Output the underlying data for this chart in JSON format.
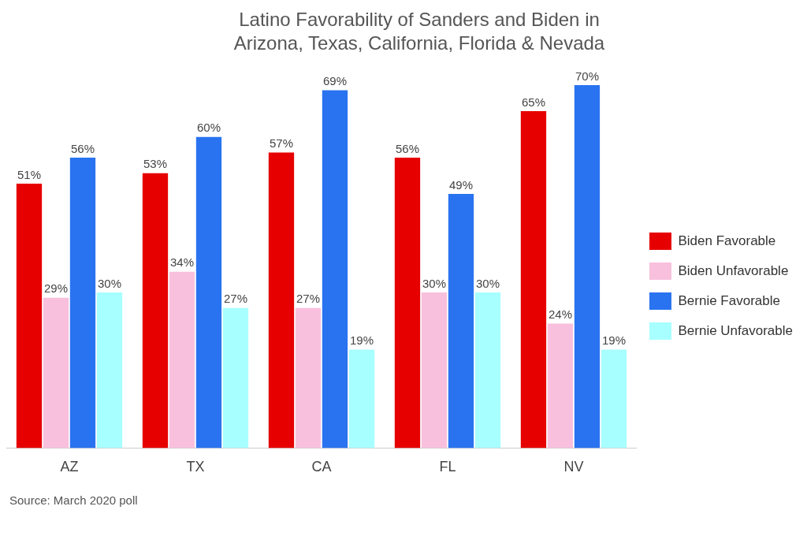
{
  "chart_data": {
    "type": "bar",
    "title": "Latino Favorability of Sanders and Biden in\nArizona, Texas, California, Florida & Nevada",
    "categories": [
      "AZ",
      "TX",
      "CA",
      "FL",
      "NV"
    ],
    "series": [
      {
        "name": "Biden Favorable",
        "color": "#e60000",
        "values": [
          51,
          53,
          57,
          56,
          65
        ],
        "value_labels": [
          "51%",
          "53%",
          "57%",
          "56%",
          "65%"
        ]
      },
      {
        "name": "Biden Unfavorable",
        "color": "#f9c0de",
        "values": [
          29,
          34,
          27,
          30,
          24
        ],
        "value_labels": [
          "29%",
          "34%",
          "27%",
          "30%",
          "24%"
        ]
      },
      {
        "name": "Bernie Favorable",
        "color": "#2a73f0",
        "values": [
          56,
          60,
          69,
          49,
          70
        ],
        "value_labels": [
          "56%",
          "60%",
          "69%",
          "49%",
          "70%"
        ]
      },
      {
        "name": "Bernie Unfavorable",
        "color": "#a8ffff",
        "values": [
          30,
          27,
          19,
          30,
          19
        ],
        "value_labels": [
          "30%",
          "27%",
          "19%",
          "30%",
          "19%"
        ]
      }
    ],
    "grid": false,
    "legend": "right",
    "annotations": [
      "Source: March 2020 poll"
    ]
  }
}
